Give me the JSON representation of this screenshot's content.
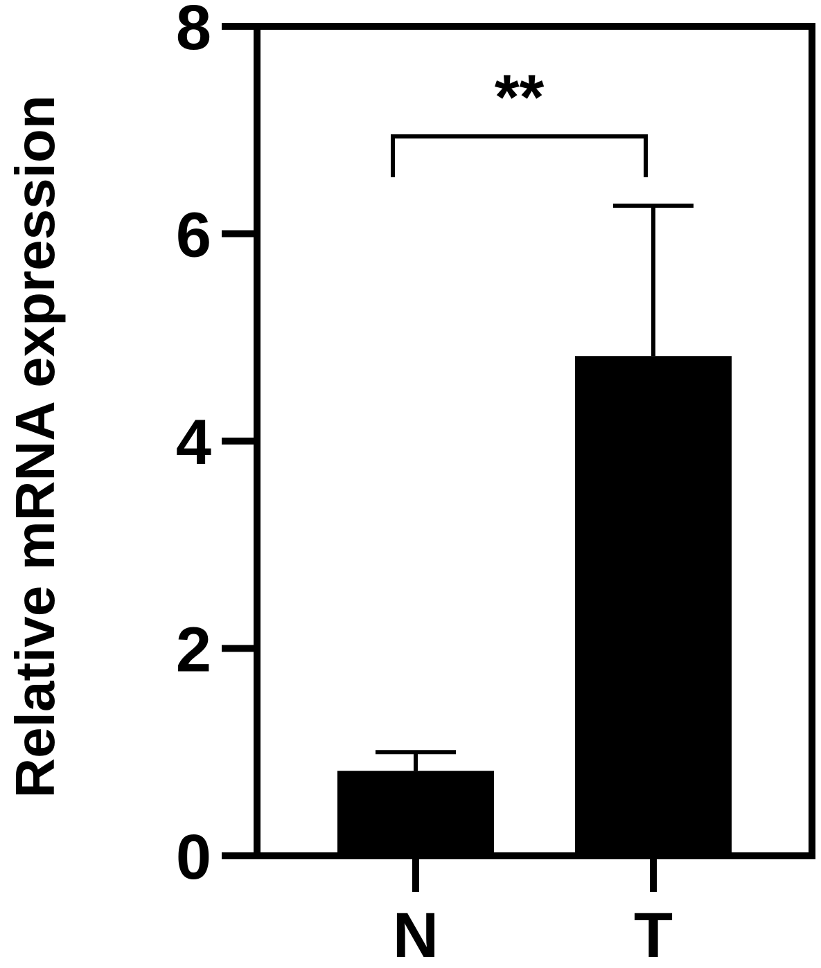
{
  "chart_data": {
    "type": "bar",
    "categories": [
      "N",
      "T"
    ],
    "values": [
      0.82,
      4.82
    ],
    "error_bars": [
      0.18,
      1.45
    ],
    "ylabel": "Relative mRNA expression",
    "xlabel": "",
    "ylim": [
      0,
      8
    ],
    "yticks": [
      "0",
      "2",
      "4",
      "6",
      "8"
    ],
    "significance": {
      "label": "**",
      "between": [
        "N",
        "T"
      ]
    },
    "bar_color": "#000000",
    "grid": false,
    "legend": "none"
  }
}
